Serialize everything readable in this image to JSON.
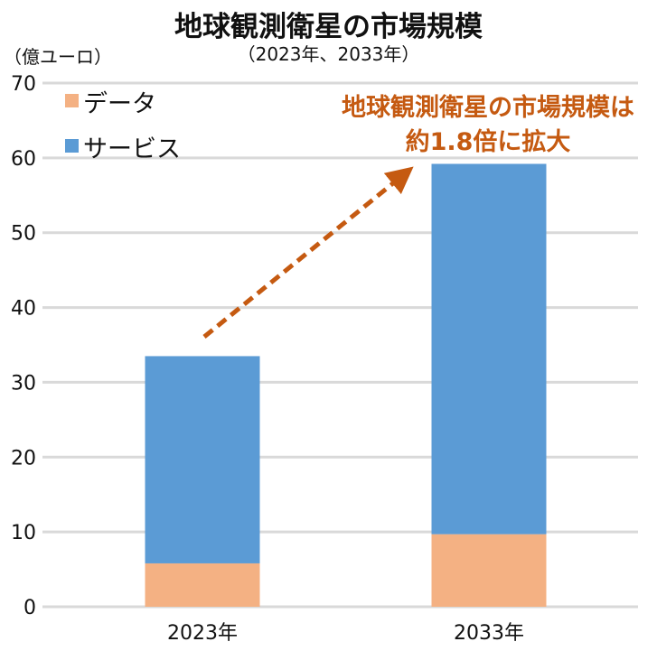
{
  "chart_data": {
    "type": "bar",
    "stacked": true,
    "title": "地球観測衛星の市場規模",
    "subtitle": "（2023年、2033年）",
    "ylabel": "（億ユーロ）",
    "xlabel": "",
    "categories": [
      "2023年",
      "2033年"
    ],
    "series": [
      {
        "name": "データ",
        "color": "#F4B183",
        "values": [
          5.8,
          9.7
        ]
      },
      {
        "name": "サービス",
        "color": "#5B9BD5",
        "values": [
          27.7,
          49.5
        ]
      }
    ],
    "ylim": [
      0,
      70
    ],
    "yticks": [
      0,
      10,
      20,
      30,
      40,
      50,
      60,
      70
    ],
    "grid": true,
    "legend_position": "top-left",
    "annotation": {
      "lines": [
        "地球観測衛星の市場規模は",
        "約1.8倍に拡大"
      ],
      "color": "#C55A11",
      "arrow": "dashed, rising from 2023 bar toward 2033 bar"
    }
  }
}
